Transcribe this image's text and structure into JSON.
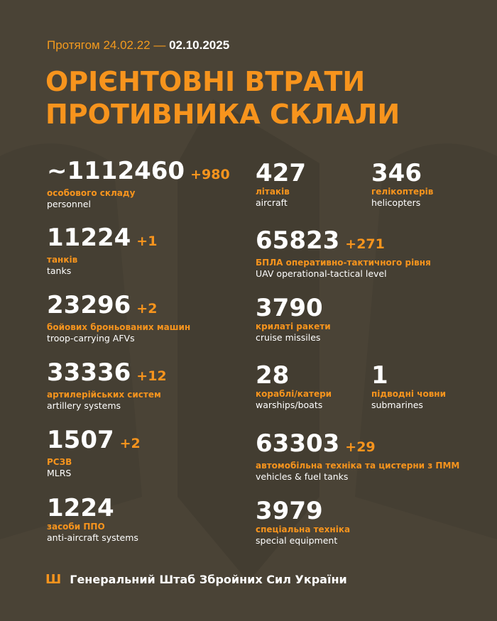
{
  "header": {
    "period_prefix": "Протягом 24.02.22 —",
    "period_end": "02.10.2025",
    "title_line1": "ОРІЄНТОВНІ ВТРАТИ",
    "title_line2": "ПРОТИВНИКА СКЛАЛИ"
  },
  "left": [
    {
      "value": "~1112460",
      "increase": "+980",
      "ua": "особового складу",
      "en": "personnel"
    },
    {
      "value": "11224",
      "increase": "+1",
      "ua": "танків",
      "en": "tanks"
    },
    {
      "value": "23296",
      "increase": "+2",
      "ua": "бойових броньованих машин",
      "en": "troop-carrying AFVs"
    },
    {
      "value": "33336",
      "increase": "+12",
      "ua": "артилерійських систем",
      "en": "artillery systems"
    },
    {
      "value": "1507",
      "increase": "+2",
      "ua": "РСЗВ",
      "en": "MLRS"
    },
    {
      "value": "1224",
      "increase": "",
      "ua": "засоби ППО",
      "en": "anti-aircraft systems"
    }
  ],
  "right": [
    {
      "value": "427",
      "increase": "",
      "ua": "літаків",
      "en": "aircraft"
    },
    {
      "value": "346",
      "increase": "",
      "ua": "гелікоптерів",
      "en": "helicopters"
    },
    {
      "value": "65823",
      "increase": "+271",
      "ua": "БПЛА оперативно-тактичного рівня",
      "en": "UAV operational-tactical level"
    },
    {
      "value": "3790",
      "increase": "",
      "ua": "крилаті ракети",
      "en": "cruise missiles"
    },
    {
      "value": "28",
      "increase": "",
      "ua": "кораблі/катери",
      "en": "warships/boats"
    },
    {
      "value": "1",
      "increase": "",
      "ua": "підводні човни",
      "en": "submarines"
    },
    {
      "value": "63303",
      "increase": "+29",
      "ua": "автомобільна техніка та цистерни з ПММ",
      "en": "vehicles & fuel tanks"
    },
    {
      "value": "3979",
      "increase": "",
      "ua": "спеціальна техніка",
      "en": "special equipment"
    }
  ],
  "footer": {
    "icon": "tryzub-icon",
    "text": "Генеральний Штаб Збройних Сил України"
  },
  "colors": {
    "background": "#4a4336",
    "accent": "#f7941d"
  }
}
